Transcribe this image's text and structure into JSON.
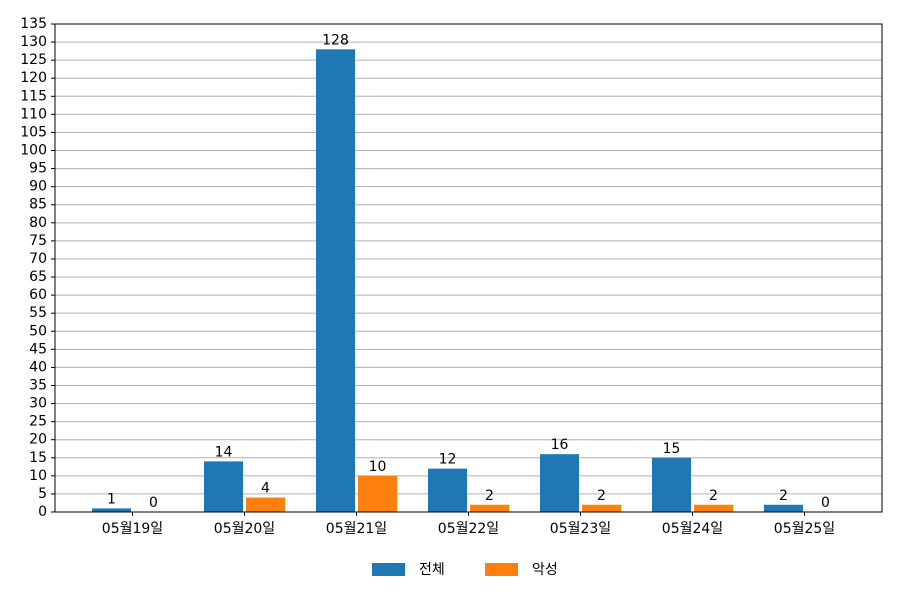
{
  "chart_data": {
    "type": "bar",
    "categories": [
      "05월19일",
      "05월20일",
      "05월21일",
      "05월22일",
      "05월23일",
      "05월24일",
      "05월25일"
    ],
    "series": [
      {
        "name": "전체",
        "color": "#1f77b4",
        "values": [
          1,
          14,
          128,
          12,
          16,
          15,
          2
        ]
      },
      {
        "name": "악성",
        "color": "#ff7f0e",
        "values": [
          0,
          4,
          10,
          2,
          2,
          2,
          0
        ]
      }
    ],
    "ylim": [
      0,
      135
    ],
    "yticks": [
      0,
      5,
      10,
      15,
      20,
      25,
      30,
      35,
      40,
      45,
      50,
      55,
      60,
      65,
      70,
      75,
      80,
      85,
      90,
      95,
      100,
      105,
      110,
      115,
      120,
      125,
      130,
      135
    ],
    "grid": true,
    "legend": "bottom"
  }
}
